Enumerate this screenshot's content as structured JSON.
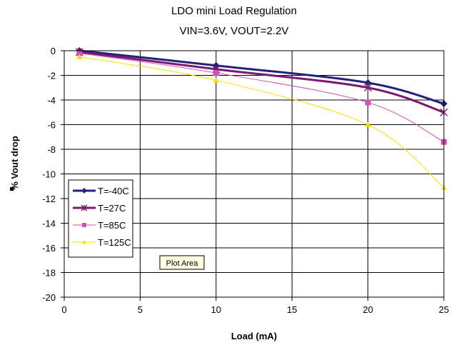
{
  "chart_data": {
    "type": "line",
    "title_line1": "LDO mini Load Regulation",
    "title_line2": "VIN=3.6V, VOUT=2.2V",
    "xlabel": "Load (mA)",
    "ylabel": "% Vout drop",
    "xlim": [
      0,
      25
    ],
    "ylim": [
      -20,
      0
    ],
    "xticks": [
      0,
      5,
      10,
      15,
      20,
      25
    ],
    "yticks": [
      0,
      -2,
      -4,
      -6,
      -8,
      -10,
      -12,
      -14,
      -16,
      -18,
      -20
    ],
    "grid": true,
    "legend_position": "left",
    "tooltip": "Plot Area",
    "series": [
      {
        "name": "T=-40C",
        "color": "#22227a",
        "marker": "diamond",
        "x": [
          1,
          10,
          20,
          25
        ],
        "y": [
          0.0,
          -1.2,
          -2.6,
          -4.3
        ]
      },
      {
        "name": "T=27C",
        "color": "#7a1a6e",
        "marker": "star",
        "x": [
          1,
          10,
          20,
          25
        ],
        "y": [
          -0.1,
          -1.5,
          -3.0,
          -5.0
        ]
      },
      {
        "name": "T=85C",
        "color": "#d34fb4",
        "marker": "square",
        "x": [
          1,
          10,
          20,
          25
        ],
        "y": [
          -0.2,
          -1.8,
          -4.2,
          -7.4
        ]
      },
      {
        "name": "T=125C",
        "color": "#f2e200",
        "marker": "triangle",
        "x": [
          1,
          10,
          20,
          25
        ],
        "y": [
          -0.5,
          -2.4,
          -6.0,
          -11.1
        ]
      }
    ]
  }
}
